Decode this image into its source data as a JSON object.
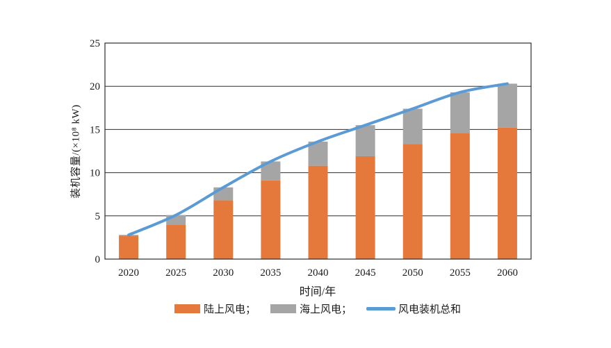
{
  "chart_data": {
    "type": "bar",
    "subtype": "stacked-bars-with-total-line",
    "categories": [
      "2020",
      "2025",
      "2030",
      "2035",
      "2040",
      "2045",
      "2050",
      "2055",
      "2060"
    ],
    "series": [
      {
        "name": "陆上风电",
        "kind": "bar",
        "color": "#E5793B",
        "values": [
          2.7,
          4.0,
          6.8,
          9.1,
          10.8,
          11.9,
          13.3,
          14.6,
          15.2
        ]
      },
      {
        "name": "海上风电",
        "kind": "bar",
        "color": "#A5A5A5",
        "values": [
          0.1,
          1.1,
          1.5,
          2.2,
          2.8,
          3.6,
          4.1,
          4.7,
          5.1
        ]
      },
      {
        "name": "风电装机总和",
        "kind": "line",
        "color": "#5B9BD5",
        "values": [
          2.8,
          5.1,
          8.3,
          11.3,
          13.6,
          15.5,
          17.4,
          19.3,
          20.3
        ]
      }
    ],
    "title": "",
    "xlabel": "时间/年",
    "ylabel": "装机容量/(×10⁸ kW)",
    "ylim": [
      0,
      25
    ],
    "yticks": [
      "0",
      "5",
      "10",
      "15",
      "20",
      "25"
    ],
    "grid": "horizontal",
    "legend_position": "bottom",
    "legend": [
      {
        "label": "陆上风电；",
        "swatch": "bar",
        "color": "#E5793B"
      },
      {
        "label": "海上风电；",
        "swatch": "bar",
        "color": "#A5A5A5"
      },
      {
        "label": "风电装机总和",
        "swatch": "line",
        "color": "#5B9BD5"
      }
    ]
  },
  "style": {
    "axis_line_color": "#2b2b2b",
    "text_color": "#1a1a1a",
    "background": "#ffffff"
  }
}
